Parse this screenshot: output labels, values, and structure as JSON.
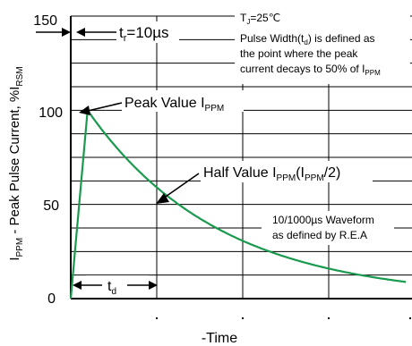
{
  "chart_data": {
    "type": "line",
    "title": "",
    "ylabel": "IPPM - Peak Pulse Current, %IRSM",
    "ylabel_parts": {
      "main": "I",
      "sub1": "PPM",
      "mid": " - Peak Pulse Current, %I",
      "sub2": "RSM"
    },
    "xlabel": "-Time",
    "ylim": [
      0,
      150
    ],
    "yticks": [
      "0",
      "50",
      "100",
      "150"
    ],
    "grid": true,
    "series": [
      {
        "color": "#1a9a4e",
        "x": [
          0,
          0.5,
          1,
          2,
          3,
          4,
          5,
          6,
          7,
          8,
          9,
          10
        ],
        "values": [
          0,
          100,
          88,
          69,
          54,
          43,
          34,
          27,
          21,
          17,
          13,
          10
        ]
      }
    ],
    "annotations": {
      "tr": {
        "main": "t",
        "sub": "r",
        "rest": "=10µs"
      },
      "peak": {
        "main": "Peak Value I",
        "sub": "PPM"
      },
      "half": {
        "main": "Half Value I",
        "sub1": "PPM",
        "mid": "(I",
        "sub2": "PPM",
        "end": "/2)"
      },
      "td": {
        "main": "t",
        "sub": "d"
      },
      "note": {
        "line1": {
          "main": "T",
          "sub": "J",
          "rest": "=25℃"
        },
        "line2": {
          "main": "Pulse Width(t",
          "sub": "d",
          "rest": ") is defined as"
        },
        "line3": "the point where the peak",
        "line4": {
          "main": "current decays to 50% of I",
          "sub": "PPM"
        }
      },
      "waveform": {
        "line1": "10/1000µs Waveform",
        "line2": "as defined by R.E.A"
      }
    }
  }
}
